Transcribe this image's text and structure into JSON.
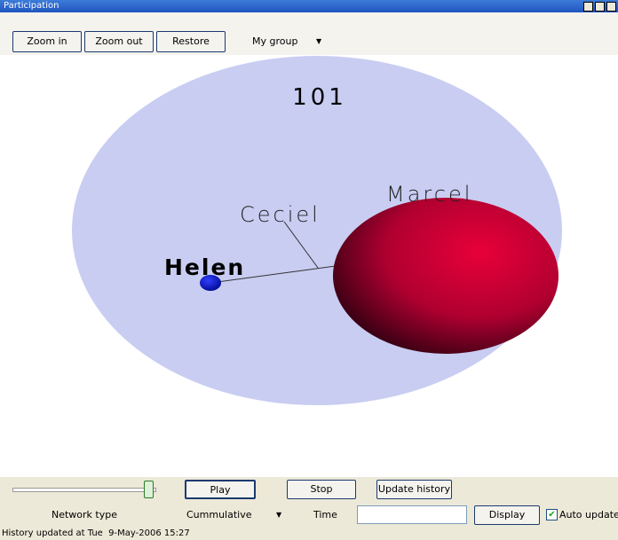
{
  "window": {
    "title": "Participation"
  },
  "toolbar": {
    "buttons": [
      "Zoom in",
      "Zoom out",
      "Restore"
    ],
    "group_select": "My group"
  },
  "view": {
    "group_label": "101",
    "nodes": [
      {
        "label": "Ceciel"
      },
      {
        "label": "Marcel"
      },
      {
        "label": "Helen"
      }
    ]
  },
  "controls": {
    "play": "Play",
    "stop": "Stop",
    "update_history": "Update history",
    "network_type_label": "Network type",
    "network_type_value": "Cummulative",
    "time_label": "Time",
    "display": "Display",
    "auto_update": "Auto update"
  },
  "status": "History updated at Tue  9-May-2006 15:27"
}
